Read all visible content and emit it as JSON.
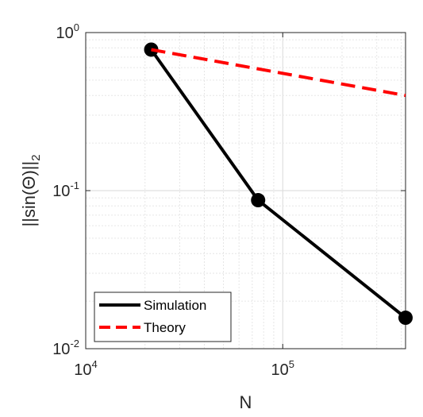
{
  "chart_data": {
    "type": "line",
    "xlabel": "N",
    "ylabel": "||sin(Θ)||",
    "ylabel_subscript": "2",
    "x_scale": "log",
    "y_scale": "log",
    "xlim": [
      10000,
      420000
    ],
    "ylim": [
      0.01,
      1
    ],
    "x_ticks": [
      {
        "value": 10000,
        "base": "10",
        "exp": "4"
      },
      {
        "value": 100000,
        "base": "10",
        "exp": "5"
      }
    ],
    "y_ticks": [
      {
        "value": 0.01,
        "base": "10",
        "exp": "-2"
      },
      {
        "value": 0.1,
        "base": "10",
        "exp": "-1"
      },
      {
        "value": 1,
        "base": "10",
        "exp": "0"
      }
    ],
    "grid": true,
    "minor_grid": true,
    "legend_position": "bottom-left",
    "series": [
      {
        "name": "Simulation",
        "color": "#000000",
        "style": "solid",
        "marker": "circle",
        "x": [
          21500,
          75000,
          420000
        ],
        "y": [
          0.78,
          0.087,
          0.0157
        ]
      },
      {
        "name": "Theory",
        "color": "#ff0000",
        "style": "dashed",
        "marker": "none",
        "x": [
          21500,
          420000
        ],
        "y": [
          0.78,
          0.4
        ]
      }
    ]
  }
}
